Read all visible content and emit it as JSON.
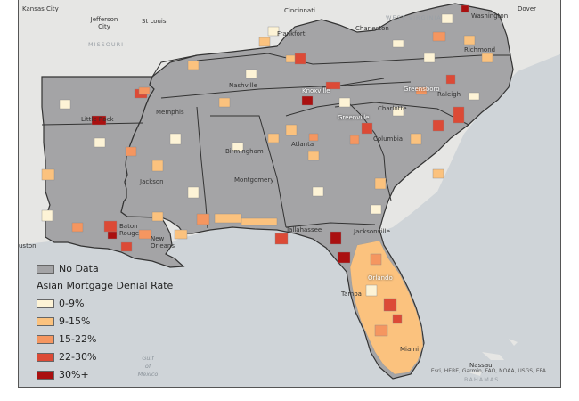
{
  "legend": {
    "no_data_label": "No Data",
    "title": "Asian Mortgage Denial Rate",
    "classes": [
      {
        "label": "0-9%",
        "color": "#fdf3d6"
      },
      {
        "label": "9-15%",
        "color": "#fbc27e"
      },
      {
        "label": "15-22%",
        "color": "#f59660"
      },
      {
        "label": "22-30%",
        "color": "#dc4a36"
      },
      {
        "label": "30%+",
        "color": "#aa1010"
      }
    ],
    "no_data_color": "#a4a4a6"
  },
  "cities": {
    "kansas_city": "Kansas City",
    "jefferson_city": "Jefferson City",
    "st_louis": "St Louis",
    "cincinnati": "Cincinnati",
    "charleston_wv": "Charleston",
    "washington": "Washington",
    "dover": "Dover",
    "frankfort": "Frankfort",
    "richmond": "Richmond",
    "nashville": "Nashville",
    "knoxville": "Knoxville",
    "greensboro": "Greensboro",
    "raleigh": "Raleigh",
    "little_rock": "Little Rock",
    "memphis": "Memphis",
    "charlotte": "Charlotte",
    "greenville": "Greenville",
    "columbia": "Columbia",
    "atlanta": "Atlanta",
    "birmingham": "Birmingham",
    "jackson": "Jackson",
    "montgomery": "Montgomery",
    "baton_rouge": "Baton Rouge",
    "new_orleans": "New Orleans",
    "tallahassee": "Tallahassee",
    "jacksonville": "Jacksonville",
    "houston": "uston",
    "orlando": "Orlando",
    "tampa": "Tampa",
    "miami": "Miami",
    "nassau": "Nassau"
  },
  "regions": {
    "missouri": "MISSOURI",
    "west_virginia": "WEST VIRGINIA",
    "bahamas": "BAHAMAS"
  },
  "gulf_label": "Gulf of Mexico",
  "attribution": "Esri, HERE, Garmin, FAO, NOAA, USGS, EPA"
}
